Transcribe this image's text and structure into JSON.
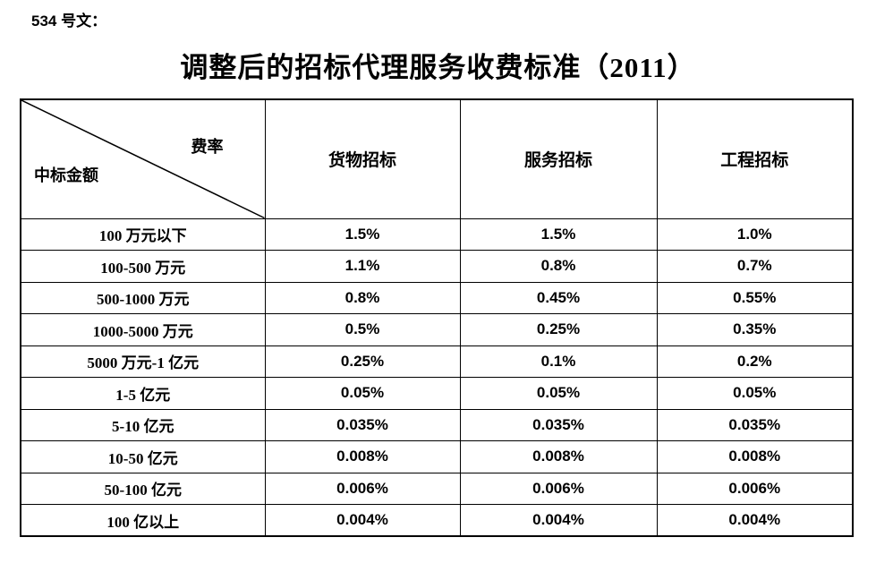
{
  "page": {
    "doc_label": "534 号文：",
    "title": "调整后的招标代理服务收费标准（2011）"
  },
  "table": {
    "corner": {
      "top_right": "费率",
      "bottom_left": "中标金额"
    },
    "columns": [
      "货物招标",
      "服务招标",
      "工程招标"
    ],
    "rows": [
      {
        "label": "100 万元以下",
        "values": [
          "1.5%",
          "1.5%",
          "1.0%"
        ]
      },
      {
        "label": "100-500 万元",
        "values": [
          "1.1%",
          "0.8%",
          "0.7%"
        ]
      },
      {
        "label": "500-1000 万元",
        "values": [
          "0.8%",
          "0.45%",
          "0.55%"
        ]
      },
      {
        "label": "1000-5000 万元",
        "values": [
          "0.5%",
          "0.25%",
          "0.35%"
        ]
      },
      {
        "label": "5000 万元-1 亿元",
        "values": [
          "0.25%",
          "0.1%",
          "0.2%"
        ]
      },
      {
        "label": "1-5 亿元",
        "values": [
          "0.05%",
          "0.05%",
          "0.05%"
        ]
      },
      {
        "label": "5-10 亿元",
        "values": [
          "0.035%",
          "0.035%",
          "0.035%"
        ]
      },
      {
        "label": "10-50 亿元",
        "values": [
          "0.008%",
          "0.008%",
          "0.008%"
        ]
      },
      {
        "label": "50-100 亿元",
        "values": [
          "0.006%",
          "0.006%",
          "0.006%"
        ]
      },
      {
        "label": "100 亿以上",
        "values": [
          "0.004%",
          "0.004%",
          "0.004%"
        ]
      }
    ]
  },
  "colors": {
    "text": "#000000",
    "border": "#000000",
    "background": "#ffffff"
  }
}
